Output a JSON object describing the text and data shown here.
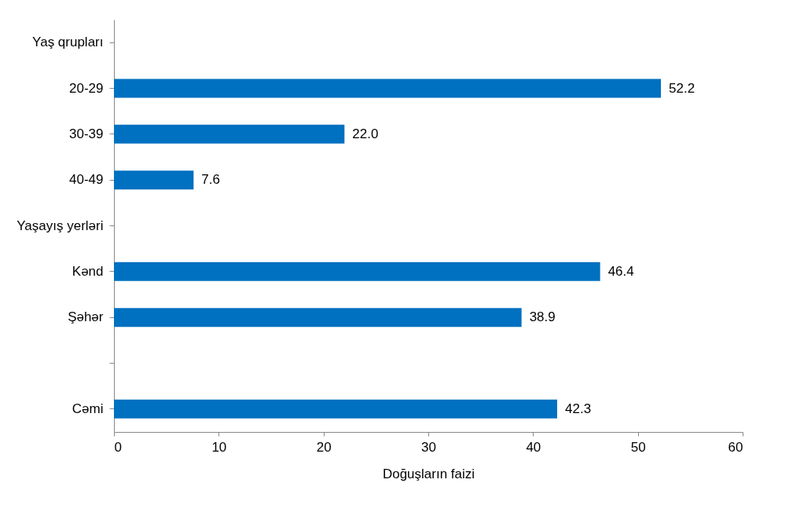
{
  "chart_data": {
    "type": "bar",
    "orientation": "horizontal",
    "xlabel": "Doğuşların faizi",
    "categories": [
      "Yaş qrupları",
      "20-29",
      "30-39",
      "40-49",
      "Yaşayış yerləri",
      "Kənd",
      "Şəhər",
      null,
      "Cəmi"
    ],
    "values": [
      null,
      52.2,
      22.0,
      7.6,
      null,
      46.4,
      38.9,
      null,
      42.3
    ],
    "value_labels": [
      null,
      "52.2",
      "22.0",
      "7.6",
      null,
      "46.4",
      "38.9",
      null,
      "42.3"
    ],
    "color": "#0070c0",
    "xlim": [
      0,
      60
    ],
    "xticks": [
      0,
      10,
      20,
      30,
      40,
      50,
      60
    ],
    "grid": false
  }
}
